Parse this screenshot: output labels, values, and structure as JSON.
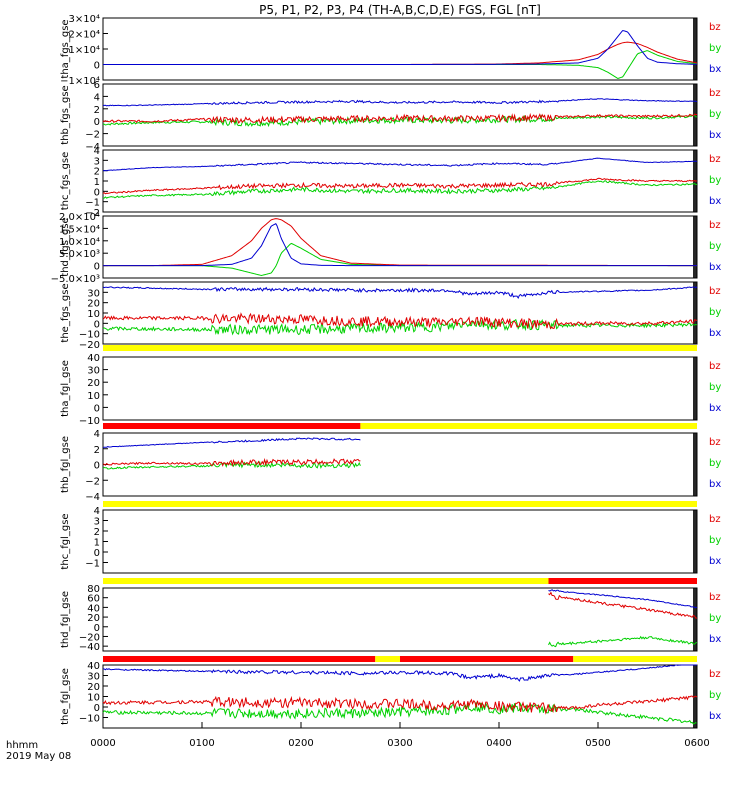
{
  "title": "P5, P1, P2, P3, P4 (TH-A,B,C,D,E) FGS, FGL [nT]",
  "time_label": "hhmm",
  "date_label": "2019 May 08",
  "x_ticks": [
    "0000",
    "0100",
    "0200",
    "0300",
    "0400",
    "0500",
    "0600"
  ],
  "components": [
    {
      "name": "bz",
      "color": "#e00000"
    },
    {
      "name": "by",
      "color": "#00d000"
    },
    {
      "name": "bx",
      "color": "#0000d0"
    }
  ],
  "status_colors": {
    "yellow": "#ffff00",
    "red": "#ff0000"
  },
  "chart_data": [
    {
      "type": "line",
      "ylabel": "tha_fgs_gse",
      "ylim": [
        -10000,
        30000
      ],
      "yticks": [
        -10000,
        0,
        10000,
        20000,
        30000
      ],
      "ytick_labels": [
        "−1×10⁴",
        "0",
        "1×10⁴",
        "2×10⁴",
        "3×10⁴"
      ],
      "x": [
        0,
        3,
        4,
        4.4,
        4.8,
        5.0,
        5.1,
        5.2,
        5.25,
        5.3,
        5.4,
        5.5,
        5.6,
        5.8,
        6.0
      ],
      "series": [
        {
          "name": "bz",
          "values": [
            0,
            0,
            300,
            1000,
            3000,
            6500,
            10000,
            13000,
            14000,
            14500,
            13500,
            11000,
            8000,
            3500,
            1000
          ]
        },
        {
          "name": "by",
          "values": [
            0,
            0,
            0,
            0,
            -500,
            -2000,
            -5000,
            -9000,
            -8000,
            -3000,
            7000,
            9000,
            6000,
            2000,
            500
          ]
        },
        {
          "name": "bx",
          "values": [
            0,
            0,
            100,
            300,
            1000,
            4000,
            10000,
            18000,
            22000,
            21000,
            12000,
            4000,
            1500,
            500,
            100
          ]
        }
      ]
    },
    {
      "type": "line",
      "ylabel": "thb_fgs_gse",
      "ylim": [
        -4,
        6
      ],
      "yticks": [
        -4,
        -2,
        0,
        2,
        4,
        6
      ],
      "ytick_labels": [
        "−4",
        "−2",
        "0",
        "2",
        "4",
        "6"
      ],
      "x": [
        0,
        0.5,
        1.0,
        1.5,
        2.0,
        2.5,
        3.0,
        3.5,
        4.0,
        4.5,
        5.0,
        5.5,
        6.0
      ],
      "series": [
        {
          "name": "bz",
          "values": [
            0,
            0,
            0.3,
            0.2,
            0.3,
            0.4,
            0.5,
            0.4,
            0.5,
            0.6,
            0.9,
            0.8,
            1.0
          ]
        },
        {
          "name": "by",
          "values": [
            -0.5,
            -0.2,
            -0.1,
            -0.3,
            -0.1,
            0.1,
            0.2,
            0.1,
            0.3,
            0.4,
            0.7,
            0.5,
            0.8
          ]
        },
        {
          "name": "bx",
          "values": [
            2.5,
            2.6,
            2.8,
            3.0,
            3.1,
            3.2,
            3.0,
            3.1,
            3.0,
            3.2,
            3.6,
            3.3,
            3.2
          ]
        }
      ]
    },
    {
      "type": "line",
      "ylabel": "thc_fgs_gse",
      "ylim": [
        -2,
        4
      ],
      "yticks": [
        -2,
        -1,
        0,
        1,
        2,
        3,
        4
      ],
      "ytick_labels": [
        "−2",
        "−1",
        "0",
        "1",
        "2",
        "3",
        "4"
      ],
      "x": [
        0,
        0.5,
        1.0,
        1.5,
        2.0,
        2.5,
        3.0,
        3.5,
        4.0,
        4.5,
        5.0,
        5.5,
        6.0
      ],
      "series": [
        {
          "name": "bz",
          "values": [
            -0.2,
            0.1,
            0.3,
            0.5,
            0.6,
            0.5,
            0.6,
            0.5,
            0.6,
            0.7,
            1.2,
            1.0,
            1.0
          ]
        },
        {
          "name": "by",
          "values": [
            -0.6,
            -0.4,
            -0.3,
            0.0,
            0.2,
            0.0,
            0.1,
            0.0,
            0.1,
            0.3,
            1.0,
            0.6,
            0.7
          ]
        },
        {
          "name": "bx",
          "values": [
            2.0,
            2.3,
            2.4,
            2.6,
            2.8,
            2.7,
            2.6,
            2.5,
            2.7,
            2.6,
            3.2,
            2.8,
            2.9
          ]
        }
      ]
    },
    {
      "type": "line",
      "ylabel": "thd_fgs_gse",
      "ylim": [
        -5000,
        20000
      ],
      "yticks": [
        -5000,
        0,
        5000,
        10000,
        15000,
        20000
      ],
      "ytick_labels": [
        "−5.0×10³",
        "0",
        "5.0×10³",
        "1.0×10⁴",
        "1.5×10⁴",
        "2.0×10⁴"
      ],
      "x": [
        0,
        0.5,
        1.0,
        1.3,
        1.5,
        1.6,
        1.7,
        1.75,
        1.8,
        1.9,
        2.0,
        2.2,
        2.5,
        3.0,
        6.0
      ],
      "series": [
        {
          "name": "bz",
          "values": [
            0,
            0,
            500,
            4000,
            10000,
            15000,
            18500,
            19000,
            18500,
            16000,
            11000,
            4000,
            1000,
            200,
            0
          ]
        },
        {
          "name": "by",
          "values": [
            0,
            0,
            0,
            -1000,
            -3000,
            -4000,
            -3000,
            0,
            5000,
            9000,
            7000,
            2500,
            500,
            0,
            0
          ]
        },
        {
          "name": "bx",
          "values": [
            0,
            0,
            0,
            500,
            3000,
            8000,
            16000,
            17000,
            11000,
            3000,
            700,
            100,
            0,
            0,
            0
          ]
        }
      ]
    },
    {
      "type": "line",
      "ylabel": "the_fgs_gse",
      "ylim": [
        -20,
        40
      ],
      "yticks": [
        -20,
        -10,
        0,
        10,
        20,
        30
      ],
      "ytick_labels": [
        "−20",
        "−10",
        "0",
        "10",
        "20",
        "30"
      ],
      "x": [
        0,
        1.0,
        2.0,
        2.6,
        3.5,
        3.7,
        4.0,
        4.2,
        4.5,
        5.0,
        5.5,
        6.0
      ],
      "series": [
        {
          "name": "bz",
          "values": [
            5,
            5,
            4,
            2,
            1,
            3,
            1,
            0,
            -1,
            0,
            0,
            2
          ]
        },
        {
          "name": "by",
          "values": [
            -5,
            -6,
            -6,
            -5,
            -3,
            1,
            -2,
            -1,
            -2,
            -2,
            -2,
            -1
          ]
        },
        {
          "name": "bx",
          "values": [
            35,
            33,
            33,
            32,
            32,
            28,
            30,
            26,
            30,
            31,
            32,
            35
          ]
        }
      ]
    },
    {
      "type": "line",
      "ylabel": "tha_fgl_gse",
      "ylim": [
        -10,
        40
      ],
      "yticks": [
        -10,
        0,
        10,
        20,
        30,
        40
      ],
      "ytick_labels": [
        "−10",
        "0",
        "10",
        "20",
        "30",
        "40"
      ],
      "series": []
    },
    {
      "type": "line",
      "ylabel": "thb_fgl_gse",
      "ylim": [
        -4,
        4
      ],
      "yticks": [
        -4,
        -2,
        0,
        2,
        4
      ],
      "ytick_labels": [
        "−4",
        "−2",
        "0",
        "2",
        "4"
      ],
      "x": [
        0,
        0.5,
        1.0,
        1.5,
        2.0,
        2.5,
        2.6
      ],
      "series": [
        {
          "name": "bz",
          "values": [
            0,
            0.2,
            0.1,
            0.3,
            0.3,
            0.4,
            0.4
          ]
        },
        {
          "name": "by",
          "values": [
            -0.5,
            -0.3,
            -0.2,
            0.0,
            -0.1,
            -0.1,
            0.0
          ]
        },
        {
          "name": "bx",
          "values": [
            2.2,
            2.5,
            2.8,
            3.0,
            3.3,
            3.2,
            3.2
          ]
        }
      ]
    },
    {
      "type": "line",
      "ylabel": "thc_fgl_gse",
      "ylim": [
        -2,
        4
      ],
      "yticks": [
        -1,
        0,
        1,
        2,
        3,
        4
      ],
      "ytick_labels": [
        "−1",
        "0",
        "1",
        "2",
        "3",
        "4"
      ],
      "series": []
    },
    {
      "type": "line",
      "ylabel": "thd_fgl_gse",
      "ylim": [
        -50,
        80
      ],
      "yticks": [
        -40,
        -20,
        0,
        20,
        40,
        60,
        80
      ],
      "ytick_labels": [
        "−40",
        "−20",
        "0",
        "20",
        "40",
        "60",
        "80"
      ],
      "x": [
        4.5,
        5.0,
        5.5,
        6.0
      ],
      "series": [
        {
          "name": "bz",
          "values": [
            65,
            50,
            35,
            20
          ]
        },
        {
          "name": "by",
          "values": [
            -38,
            -30,
            -22,
            -35
          ]
        },
        {
          "name": "bx",
          "values": [
            75,
            66,
            56,
            40
          ]
        }
      ]
    },
    {
      "type": "line",
      "ylabel": "the_fgl_gse",
      "ylim": [
        -20,
        40
      ],
      "yticks": [
        -10,
        0,
        10,
        20,
        30,
        40
      ],
      "ytick_labels": [
        "−10",
        "0",
        "10",
        "20",
        "30",
        "40"
      ],
      "x": [
        0,
        1.0,
        2.0,
        2.75,
        3.0,
        3.5,
        3.7,
        4.0,
        4.2,
        4.5,
        4.75,
        5.0,
        5.5,
        6.0
      ],
      "series": [
        {
          "name": "bz",
          "values": [
            4,
            5,
            4,
            3,
            3,
            1,
            3,
            1,
            0,
            -1,
            -1,
            2,
            5,
            10
          ]
        },
        {
          "name": "by",
          "values": [
            -5,
            -6,
            -6,
            -6,
            -5,
            -3,
            1,
            -2,
            -1,
            -2,
            -2,
            -5,
            -10,
            -15
          ]
        },
        {
          "name": "bx",
          "values": [
            36,
            34,
            33,
            32,
            33,
            32,
            28,
            30,
            26,
            30,
            31,
            33,
            37,
            42
          ]
        }
      ]
    }
  ],
  "status_bars": [
    {
      "segments": [
        {
          "x0": 0,
          "x1": 6.0,
          "color": "yellow"
        }
      ]
    },
    {
      "segments": [
        {
          "x0": 0,
          "x1": 2.6,
          "color": "red"
        },
        {
          "x0": 2.6,
          "x1": 6.0,
          "color": "yellow"
        }
      ]
    },
    {
      "segments": [
        {
          "x0": 0,
          "x1": 6.0,
          "color": "yellow"
        }
      ]
    },
    {
      "segments": [
        {
          "x0": 0,
          "x1": 4.5,
          "color": "yellow"
        },
        {
          "x0": 4.5,
          "x1": 6.0,
          "color": "red"
        }
      ]
    },
    {
      "segments": [
        {
          "x0": 0,
          "x1": 2.75,
          "color": "red"
        },
        {
          "x0": 2.75,
          "x1": 3.0,
          "color": "yellow"
        },
        {
          "x0": 3.0,
          "x1": 4.75,
          "color": "red"
        },
        {
          "x0": 4.75,
          "x1": 6.0,
          "color": "yellow"
        }
      ]
    }
  ]
}
